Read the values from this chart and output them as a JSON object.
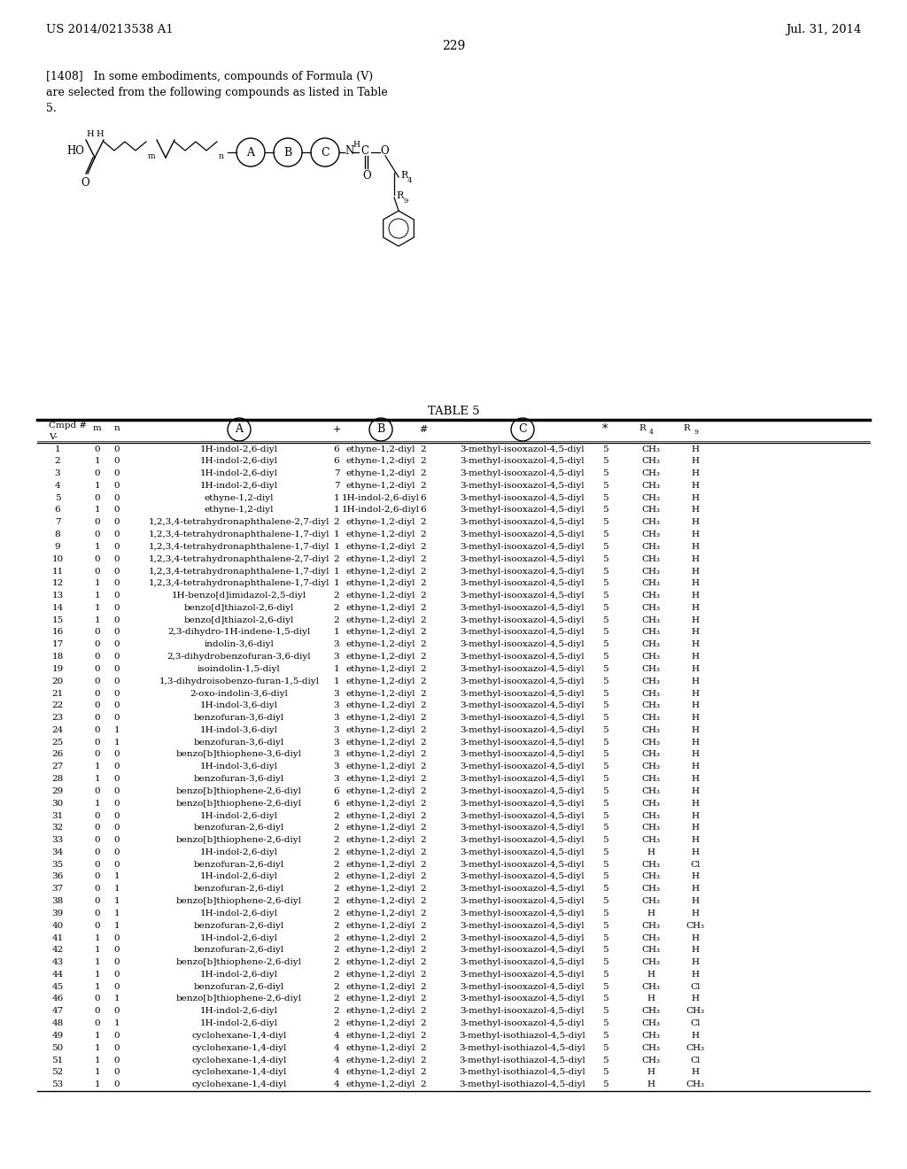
{
  "header_left": "US 2014/0213538 A1",
  "header_right": "Jul. 31, 2014",
  "page_number": "229",
  "paragraph_line1": "[1408]   In some embodiments, compounds of Formula (V)",
  "paragraph_line2": "are selected from the following compounds as listed in Table",
  "paragraph_line3": "5.",
  "table_title": "TABLE 5",
  "rows": [
    [
      "1",
      "0",
      "0",
      "1H-indol-2,6-diyl",
      "6",
      "ethyne-1,2-diyl",
      "2",
      "3-methyl-isooxazol-4,5-diyl",
      "5",
      "CH₃",
      "H"
    ],
    [
      "2",
      "1",
      "0",
      "1H-indol-2,6-diyl",
      "6",
      "ethyne-1,2-diyl",
      "2",
      "3-methyl-isooxazol-4,5-diyl",
      "5",
      "CH₃",
      "H"
    ],
    [
      "3",
      "0",
      "0",
      "1H-indol-2,6-diyl",
      "7",
      "ethyne-1,2-diyl",
      "2",
      "3-methyl-isooxazol-4,5-diyl",
      "5",
      "CH₃",
      "H"
    ],
    [
      "4",
      "1",
      "0",
      "1H-indol-2,6-diyl",
      "7",
      "ethyne-1,2-diyl",
      "2",
      "3-methyl-isooxazol-4,5-diyl",
      "5",
      "CH₃",
      "H"
    ],
    [
      "5",
      "0",
      "0",
      "ethyne-1,2-diyl",
      "1",
      "1H-indol-2,6-diyl",
      "6",
      "3-methyl-isooxazol-4,5-diyl",
      "5",
      "CH₃",
      "H"
    ],
    [
      "6",
      "1",
      "0",
      "ethyne-1,2-diyl",
      "1",
      "1H-indol-2,6-diyl",
      "6",
      "3-methyl-isooxazol-4,5-diyl",
      "5",
      "CH₃",
      "H"
    ],
    [
      "7",
      "0",
      "0",
      "1,2,3,4-tetrahydronaphthalene-2,7-diyl",
      "2",
      "ethyne-1,2-diyl",
      "2",
      "3-methyl-isooxazol-4,5-diyl",
      "5",
      "CH₃",
      "H"
    ],
    [
      "8",
      "0",
      "0",
      "1,2,3,4-tetrahydronaphthalene-1,7-diyl",
      "1",
      "ethyne-1,2-diyl",
      "2",
      "3-methyl-isooxazol-4,5-diyl",
      "5",
      "CH₃",
      "H"
    ],
    [
      "9",
      "1",
      "0",
      "1,2,3,4-tetrahydronaphthalene-1,7-diyl",
      "1",
      "ethyne-1,2-diyl",
      "2",
      "3-methyl-isooxazol-4,5-diyl",
      "5",
      "CH₃",
      "H"
    ],
    [
      "10",
      "0",
      "0",
      "1,2,3,4-tetrahydronaphthalene-2,7-diyl",
      "2",
      "ethyne-1,2-diyl",
      "2",
      "3-methyl-isooxazol-4,5-diyl",
      "5",
      "CH₃",
      "H"
    ],
    [
      "11",
      "0",
      "0",
      "1,2,3,4-tetrahydronaphthalene-1,7-diyl",
      "1",
      "ethyne-1,2-diyl",
      "2",
      "3-methyl-isooxazol-4,5-diyl",
      "5",
      "CH₃",
      "H"
    ],
    [
      "12",
      "1",
      "0",
      "1,2,3,4-tetrahydronaphthalene-1,7-diyl",
      "1",
      "ethyne-1,2-diyl",
      "2",
      "3-methyl-isooxazol-4,5-diyl",
      "5",
      "CH₃",
      "H"
    ],
    [
      "13",
      "1",
      "0",
      "1H-benzo[d]imidazol-2,5-diyl",
      "2",
      "ethyne-1,2-diyl",
      "2",
      "3-methyl-isooxazol-4,5-diyl",
      "5",
      "CH₃",
      "H"
    ],
    [
      "14",
      "1",
      "0",
      "benzo[d]thiazol-2,6-diyl",
      "2",
      "ethyne-1,2-diyl",
      "2",
      "3-methyl-isooxazol-4,5-diyl",
      "5",
      "CH₃",
      "H"
    ],
    [
      "15",
      "1",
      "0",
      "benzo[d]thiazol-2,6-diyl",
      "2",
      "ethyne-1,2-diyl",
      "2",
      "3-methyl-isooxazol-4,5-diyl",
      "5",
      "CH₃",
      "H"
    ],
    [
      "16",
      "0",
      "0",
      "2,3-dihydro-1H-indene-1,5-diyl",
      "1",
      "ethyne-1,2-diyl",
      "2",
      "3-methyl-isooxazol-4,5-diyl",
      "5",
      "CH₃",
      "H"
    ],
    [
      "17",
      "0",
      "0",
      "indolin-3,6-diyl",
      "3",
      "ethyne-1,2-diyl",
      "2",
      "3-methyl-isooxazol-4,5-diyl",
      "5",
      "CH₃",
      "H"
    ],
    [
      "18",
      "0",
      "0",
      "2,3-dihydrobenzofuran-3,6-diyl",
      "3",
      "ethyne-1,2-diyl",
      "2",
      "3-methyl-isooxazol-4,5-diyl",
      "5",
      "CH₃",
      "H"
    ],
    [
      "19",
      "0",
      "0",
      "isoindolin-1,5-diyl",
      "1",
      "ethyne-1,2-diyl",
      "2",
      "3-methyl-isooxazol-4,5-diyl",
      "5",
      "CH₃",
      "H"
    ],
    [
      "20",
      "0",
      "0",
      "1,3-dihydroisobenzo-furan-1,5-diyl",
      "1",
      "ethyne-1,2-diyl",
      "2",
      "3-methyl-isooxazol-4,5-diyl",
      "5",
      "CH₃",
      "H"
    ],
    [
      "21",
      "0",
      "0",
      "2-oxo-indolin-3,6-diyl",
      "3",
      "ethyne-1,2-diyl",
      "2",
      "3-methyl-isooxazol-4,5-diyl",
      "5",
      "CH₃",
      "H"
    ],
    [
      "22",
      "0",
      "0",
      "1H-indol-3,6-diyl",
      "3",
      "ethyne-1,2-diyl",
      "2",
      "3-methyl-isooxazol-4,5-diyl",
      "5",
      "CH₃",
      "H"
    ],
    [
      "23",
      "0",
      "0",
      "benzofuran-3,6-diyl",
      "3",
      "ethyne-1,2-diyl",
      "2",
      "3-methyl-isooxazol-4,5-diyl",
      "5",
      "CH₃",
      "H"
    ],
    [
      "24",
      "0",
      "1",
      "1H-indol-3,6-diyl",
      "3",
      "ethyne-1,2-diyl",
      "2",
      "3-methyl-isooxazol-4,5-diyl",
      "5",
      "CH₃",
      "H"
    ],
    [
      "25",
      "0",
      "1",
      "benzofuran-3,6-diyl",
      "3",
      "ethyne-1,2-diyl",
      "2",
      "3-methyl-isooxazol-4,5-diyl",
      "5",
      "CH₃",
      "H"
    ],
    [
      "26",
      "0",
      "0",
      "benzo[b]thiophene-3,6-diyl",
      "3",
      "ethyne-1,2-diyl",
      "2",
      "3-methyl-isooxazol-4,5-diyl",
      "5",
      "CH₃",
      "H"
    ],
    [
      "27",
      "1",
      "0",
      "1H-indol-3,6-diyl",
      "3",
      "ethyne-1,2-diyl",
      "2",
      "3-methyl-isooxazol-4,5-diyl",
      "5",
      "CH₃",
      "H"
    ],
    [
      "28",
      "1",
      "0",
      "benzofuran-3,6-diyl",
      "3",
      "ethyne-1,2-diyl",
      "2",
      "3-methyl-isooxazol-4,5-diyl",
      "5",
      "CH₃",
      "H"
    ],
    [
      "29",
      "0",
      "0",
      "benzo[b]thiophene-2,6-diyl",
      "6",
      "ethyne-1,2-diyl",
      "2",
      "3-methyl-isooxazol-4,5-diyl",
      "5",
      "CH₃",
      "H"
    ],
    [
      "30",
      "1",
      "0",
      "benzo[b]thiophene-2,6-diyl",
      "6",
      "ethyne-1,2-diyl",
      "2",
      "3-methyl-isooxazol-4,5-diyl",
      "5",
      "CH₃",
      "H"
    ],
    [
      "31",
      "0",
      "0",
      "1H-indol-2,6-diyl",
      "2",
      "ethyne-1,2-diyl",
      "2",
      "3-methyl-isooxazol-4,5-diyl",
      "5",
      "CH₃",
      "H"
    ],
    [
      "32",
      "0",
      "0",
      "benzofuran-2,6-diyl",
      "2",
      "ethyne-1,2-diyl",
      "2",
      "3-methyl-isooxazol-4,5-diyl",
      "5",
      "CH₃",
      "H"
    ],
    [
      "33",
      "0",
      "0",
      "benzo[b]thiophene-2,6-diyl",
      "2",
      "ethyne-1,2-diyl",
      "2",
      "3-methyl-isooxazol-4,5-diyl",
      "5",
      "CH₃",
      "H"
    ],
    [
      "34",
      "0",
      "0",
      "1H-indol-2,6-diyl",
      "2",
      "ethyne-1,2-diyl",
      "2",
      "3-methyl-isooxazol-4,5-diyl",
      "5",
      "H",
      "H"
    ],
    [
      "35",
      "0",
      "0",
      "benzofuran-2,6-diyl",
      "2",
      "ethyne-1,2-diyl",
      "2",
      "3-methyl-isooxazol-4,5-diyl",
      "5",
      "CH₃",
      "Cl"
    ],
    [
      "36",
      "0",
      "1",
      "1H-indol-2,6-diyl",
      "2",
      "ethyne-1,2-diyl",
      "2",
      "3-methyl-isooxazol-4,5-diyl",
      "5",
      "CH₃",
      "H"
    ],
    [
      "37",
      "0",
      "1",
      "benzofuran-2,6-diyl",
      "2",
      "ethyne-1,2-diyl",
      "2",
      "3-methyl-isooxazol-4,5-diyl",
      "5",
      "CH₃",
      "H"
    ],
    [
      "38",
      "0",
      "1",
      "benzo[b]thiophene-2,6-diyl",
      "2",
      "ethyne-1,2-diyl",
      "2",
      "3-methyl-isooxazol-4,5-diyl",
      "5",
      "CH₃",
      "H"
    ],
    [
      "39",
      "0",
      "1",
      "1H-indol-2,6-diyl",
      "2",
      "ethyne-1,2-diyl",
      "2",
      "3-methyl-isooxazol-4,5-diyl",
      "5",
      "H",
      "H"
    ],
    [
      "40",
      "0",
      "1",
      "benzofuran-2,6-diyl",
      "2",
      "ethyne-1,2-diyl",
      "2",
      "3-methyl-isooxazol-4,5-diyl",
      "5",
      "CH₃",
      "CH₃"
    ],
    [
      "41",
      "1",
      "0",
      "1H-indol-2,6-diyl",
      "2",
      "ethyne-1,2-diyl",
      "2",
      "3-methyl-isooxazol-4,5-diyl",
      "5",
      "CH₃",
      "H"
    ],
    [
      "42",
      "1",
      "0",
      "benzofuran-2,6-diyl",
      "2",
      "ethyne-1,2-diyl",
      "2",
      "3-methyl-isooxazol-4,5-diyl",
      "5",
      "CH₃",
      "H"
    ],
    [
      "43",
      "1",
      "0",
      "benzo[b]thiophene-2,6-diyl",
      "2",
      "ethyne-1,2-diyl",
      "2",
      "3-methyl-isooxazol-4,5-diyl",
      "5",
      "CH₃",
      "H"
    ],
    [
      "44",
      "1",
      "0",
      "1H-indol-2,6-diyl",
      "2",
      "ethyne-1,2-diyl",
      "2",
      "3-methyl-isooxazol-4,5-diyl",
      "5",
      "H",
      "H"
    ],
    [
      "45",
      "1",
      "0",
      "benzofuran-2,6-diyl",
      "2",
      "ethyne-1,2-diyl",
      "2",
      "3-methyl-isooxazol-4,5-diyl",
      "5",
      "CH₃",
      "Cl"
    ],
    [
      "46",
      "0",
      "1",
      "benzo[b]thiophene-2,6-diyl",
      "2",
      "ethyne-1,2-diyl",
      "2",
      "3-methyl-isooxazol-4,5-diyl",
      "5",
      "H",
      "H"
    ],
    [
      "47",
      "0",
      "0",
      "1H-indol-2,6-diyl",
      "2",
      "ethyne-1,2-diyl",
      "2",
      "3-methyl-isooxazol-4,5-diyl",
      "5",
      "CH₃",
      "CH₃"
    ],
    [
      "48",
      "0",
      "1",
      "1H-indol-2,6-diyl",
      "2",
      "ethyne-1,2-diyl",
      "2",
      "3-methyl-isooxazol-4,5-diyl",
      "5",
      "CH₃",
      "Cl"
    ],
    [
      "49",
      "1",
      "0",
      "cyclohexane-1,4-diyl",
      "4",
      "ethyne-1,2-diyl",
      "2",
      "3-methyl-isothiazol-4,5-diyl",
      "5",
      "CH₃",
      "H"
    ],
    [
      "50",
      "1",
      "0",
      "cyclohexane-1,4-diyl",
      "4",
      "ethyne-1,2-diyl",
      "2",
      "3-methyl-isothiazol-4,5-diyl",
      "5",
      "CH₃",
      "CH₃"
    ],
    [
      "51",
      "1",
      "0",
      "cyclohexane-1,4-diyl",
      "4",
      "ethyne-1,2-diyl",
      "2",
      "3-methyl-isothiazol-4,5-diyl",
      "5",
      "CH₃",
      "Cl"
    ],
    [
      "52",
      "1",
      "0",
      "cyclohexane-1,4-diyl",
      "4",
      "ethyne-1,2-diyl",
      "2",
      "3-methyl-isothiazol-4,5-diyl",
      "5",
      "H",
      "H"
    ],
    [
      "53",
      "1",
      "0",
      "cyclohexane-1,4-diyl",
      "4",
      "ethyne-1,2-diyl",
      "2",
      "3-methyl-isothiazol-4,5-diyl",
      "5",
      "H",
      "CH₃"
    ]
  ],
  "bg_color": "#ffffff",
  "text_color": "#000000"
}
